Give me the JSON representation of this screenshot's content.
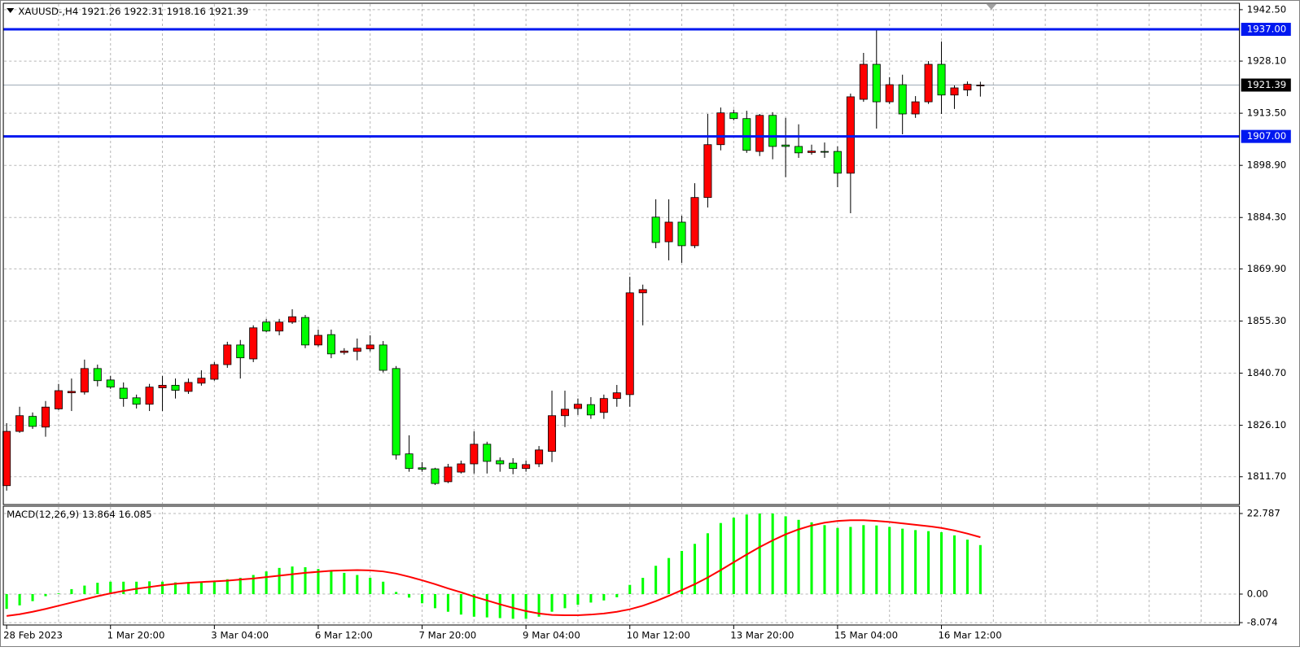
{
  "chart_data": [
    {
      "type": "candlestick",
      "title": "XAUUSD-,H4",
      "categories": [
        "28 Feb 2023",
        null,
        null,
        null,
        null,
        null,
        null,
        null,
        "1 Mar 20:00",
        null,
        null,
        null,
        null,
        null,
        null,
        null,
        "3 Mar 04:00",
        null,
        null,
        null,
        null,
        null,
        null,
        null,
        "6 Mar 12:00",
        null,
        null,
        null,
        null,
        null,
        null,
        null,
        "7 Mar 20:00",
        null,
        null,
        null,
        null,
        null,
        null,
        null,
        "9 Mar 04:00",
        null,
        null,
        null,
        null,
        null,
        null,
        null,
        "10 Mar 12:00",
        null,
        null,
        null,
        null,
        null,
        null,
        null,
        "13 Mar 20:00",
        null,
        null,
        null,
        null,
        null,
        null,
        null,
        "15 Mar 04:00",
        null,
        null,
        null,
        null,
        null,
        null,
        null,
        "16 Mar 12:00",
        null,
        null,
        null
      ],
      "open": [
        1809.2,
        1824.4,
        1828.6,
        1825.6,
        1830.7,
        1835.2,
        1835.4,
        1842.0,
        1838.8,
        1836.5,
        1833.8,
        1832.0,
        1836.6,
        1837.3,
        1835.6,
        1837.9,
        1839.0,
        1843.1,
        1848.6,
        1844.7,
        1855.0,
        1852.5,
        1855.0,
        1856.3,
        1848.6,
        1851.5,
        1846.5,
        1846.8,
        1847.5,
        1848.6,
        1842.0,
        1818.1,
        1814.2,
        1813.9,
        1810.3,
        1813.0,
        1815.3,
        1820.8,
        1816.2,
        1815.5,
        1814.0,
        1815.3,
        1818.8,
        1828.8,
        1830.8,
        1831.9,
        1829.7,
        1833.6,
        1834.7,
        1863.2,
        1884.4,
        1877.5,
        1883.0,
        1876.4,
        1889.9,
        1904.7,
        1913.6,
        1912.0,
        1902.8,
        1912.9,
        1904.6,
        1904.2,
        1902.5,
        1902.8,
        1902.8,
        1896.7,
        1917.4,
        1927.2,
        1916.7,
        1921.5,
        1913.3,
        1916.7,
        1927.2,
        1918.6,
        1920.0,
        1921.26
      ],
      "high": [
        1826.7,
        1831.3,
        1829.7,
        1832.9,
        1837.7,
        1839.2,
        1844.5,
        1843.1,
        1839.9,
        1838.1,
        1834.7,
        1837.7,
        1839.9,
        1839.2,
        1839.2,
        1841.5,
        1843.8,
        1849.5,
        1850.0,
        1854.1,
        1855.9,
        1855.9,
        1858.6,
        1857.0,
        1852.9,
        1852.9,
        1847.7,
        1850.4,
        1851.3,
        1849.7,
        1842.7,
        1823.3,
        1815.8,
        1814.2,
        1815.3,
        1816.2,
        1824.4,
        1821.5,
        1817.1,
        1816.9,
        1816.2,
        1820.3,
        1835.8,
        1835.8,
        1833.6,
        1834.0,
        1834.7,
        1837.4,
        1867.7,
        1865.5,
        1889.4,
        1889.4,
        1884.8,
        1893.9,
        1913.3,
        1915.1,
        1914.5,
        1914.2,
        1913.3,
        1913.8,
        1912.2,
        1910.4,
        1904.7,
        1905.3,
        1904.2,
        1919.0,
        1930.4,
        1937.0,
        1923.6,
        1924.3,
        1918.3,
        1928.1,
        1933.6,
        1921.3,
        1922.4,
        1922.31
      ],
      "low": [
        1807.8,
        1824.0,
        1825.1,
        1822.9,
        1830.4,
        1830.1,
        1834.7,
        1837.0,
        1836.3,
        1831.3,
        1830.8,
        1830.1,
        1830.1,
        1833.6,
        1834.9,
        1837.2,
        1838.6,
        1842.2,
        1839.2,
        1843.8,
        1852.2,
        1851.3,
        1854.5,
        1847.7,
        1848.1,
        1844.9,
        1845.9,
        1844.3,
        1846.8,
        1840.9,
        1816.5,
        1813.1,
        1813.1,
        1809.4,
        1809.9,
        1812.6,
        1812.6,
        1812.6,
        1813.1,
        1812.4,
        1813.1,
        1814.4,
        1815.8,
        1825.6,
        1829.0,
        1827.9,
        1827.9,
        1831.3,
        1831.3,
        1854.1,
        1875.7,
        1872.3,
        1871.6,
        1875.7,
        1887.1,
        1903.1,
        1911.5,
        1902.4,
        1901.5,
        1900.6,
        1895.6,
        1901.0,
        1901.9,
        1901.0,
        1892.8,
        1885.5,
        1916.7,
        1909.2,
        1916.1,
        1907.6,
        1912.2,
        1916.1,
        1913.3,
        1914.7,
        1918.3,
        1918.16
      ],
      "close": [
        1824.4,
        1828.8,
        1825.8,
        1831.2,
        1835.8,
        1835.6,
        1842.0,
        1838.6,
        1836.8,
        1833.6,
        1832.0,
        1836.8,
        1837.3,
        1835.9,
        1838.1,
        1839.3,
        1843.1,
        1848.6,
        1845.0,
        1853.4,
        1852.5,
        1855.0,
        1856.5,
        1848.6,
        1851.3,
        1846.1,
        1846.9,
        1847.7,
        1848.6,
        1841.5,
        1817.8,
        1814.0,
        1813.8,
        1809.8,
        1814.4,
        1815.3,
        1820.8,
        1816.0,
        1815.3,
        1814.0,
        1815.1,
        1819.2,
        1828.8,
        1830.6,
        1832.0,
        1829.0,
        1833.6,
        1835.2,
        1863.2,
        1864.1,
        1877.3,
        1883.0,
        1876.4,
        1889.9,
        1904.7,
        1913.6,
        1912.0,
        1903.1,
        1912.9,
        1904.2,
        1904.2,
        1902.4,
        1902.9,
        1902.6,
        1896.7,
        1918.1,
        1927.2,
        1916.7,
        1921.5,
        1913.3,
        1916.7,
        1927.2,
        1918.6,
        1920.6,
        1921.6,
        1921.39
      ],
      "up_color": "#ff0000",
      "down_color": "#00ff00",
      "ylim": [
        1803.9,
        1944.3
      ],
      "yticks": [
        {
          "value": 1942.5,
          "label": "1942.50"
        },
        {
          "value": 1928.1,
          "label": "1928.10"
        },
        {
          "value": 1913.5,
          "label": "1913.50"
        },
        {
          "value": 1898.9,
          "label": "1898.90"
        },
        {
          "value": 1884.3,
          "label": "1884.30"
        },
        {
          "value": 1869.9,
          "label": "1869.90"
        },
        {
          "value": 1855.3,
          "label": "1855.30"
        },
        {
          "value": 1840.7,
          "label": "1840.70"
        },
        {
          "value": 1826.1,
          "label": "1826.10"
        },
        {
          "value": 1811.7,
          "label": "1811.70"
        }
      ],
      "levels": [
        {
          "value": 1937,
          "label": "1937.00",
          "color": "#0018f0"
        },
        {
          "value": 1907,
          "label": "1907.00",
          "color": "#0018f0"
        }
      ],
      "grid": true
    },
    {
      "type": "macd",
      "title": "MACD(12,26,9)",
      "series": [
        {
          "type": "bar",
          "color": "#00ff00",
          "values": [
            -4.2,
            -3.2,
            -2.0,
            -0.6,
            0.2,
            1.4,
            2.4,
            3.2,
            3.5,
            3.5,
            3.5,
            3.6,
            3.5,
            3.3,
            3.3,
            3.3,
            3.6,
            4.2,
            4.6,
            5.4,
            6.4,
            7.4,
            7.8,
            7.6,
            7.1,
            6.6,
            6.0,
            5.4,
            4.6,
            3.5,
            0.6,
            -1.0,
            -2.6,
            -4.0,
            -5.0,
            -5.8,
            -6.4,
            -6.6,
            -6.8,
            -7.0,
            -7.0,
            -6.4,
            -5.0,
            -4.0,
            -3.0,
            -2.4,
            -1.8,
            -0.9,
            2.6,
            4.6,
            8.0,
            10.2,
            12.2,
            14.2,
            17.2,
            20.1,
            21.6,
            22.5,
            22.8,
            22.8,
            22.0,
            21.0,
            20.3,
            19.5,
            18.7,
            19.0,
            19.5,
            19.4,
            19.0,
            18.5,
            18.1,
            17.8,
            17.5,
            16.6,
            15.4,
            13.864
          ]
        },
        {
          "type": "line",
          "color": "#ff0000",
          "values": [
            -6.2,
            -5.7,
            -5.0,
            -4.2,
            -3.3,
            -2.4,
            -1.5,
            -0.6,
            0.2,
            0.9,
            1.5,
            2.0,
            2.5,
            2.9,
            3.2,
            3.4,
            3.6,
            3.8,
            4.1,
            4.4,
            4.8,
            5.2,
            5.6,
            6.0,
            6.3,
            6.6,
            6.7,
            6.8,
            6.7,
            6.4,
            5.8,
            4.9,
            3.9,
            2.8,
            1.6,
            0.5,
            -0.7,
            -1.8,
            -2.9,
            -3.9,
            -4.8,
            -5.5,
            -5.9,
            -6.0,
            -6.0,
            -5.8,
            -5.5,
            -5.0,
            -4.3,
            -3.3,
            -2.0,
            -0.5,
            1.1,
            2.8,
            4.7,
            6.8,
            9.0,
            11.2,
            13.3,
            15.2,
            16.9,
            18.3,
            19.4,
            20.2,
            20.7,
            20.9,
            20.9,
            20.7,
            20.4,
            20.0,
            19.6,
            19.2,
            18.7,
            18.0,
            17.1,
            16.085
          ]
        }
      ],
      "ylim": [
        -8.75,
        24.4
      ],
      "yticks": [
        22.787,
        {
          "value": 0,
          "label": "0.00"
        },
        -8.074
      ],
      "grid": true
    }
  ]
}
